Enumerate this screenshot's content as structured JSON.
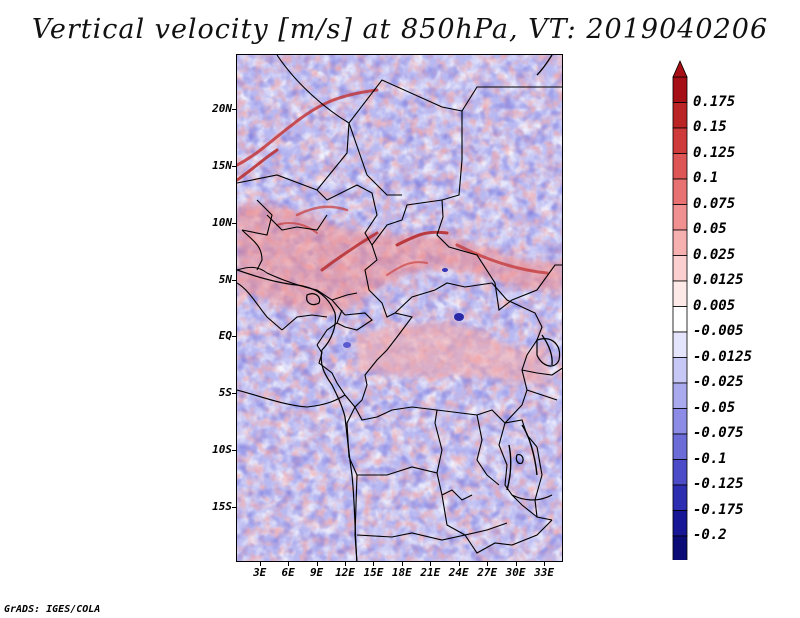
{
  "title": "Vertical velocity [m/s] at 850hPa, VT: 2019040206",
  "footer": "GrADS: IGES/COLA",
  "map": {
    "lat_labels": [
      "20N",
      "15N",
      "10N",
      "5N",
      "EQ",
      "5S",
      "10S",
      "15S"
    ],
    "lat_values": [
      20,
      15,
      10,
      5,
      0,
      -5,
      -10,
      -15
    ],
    "lon_labels": [
      "3E",
      "6E",
      "9E",
      "12E",
      "15E",
      "18E",
      "21E",
      "24E",
      "27E",
      "30E",
      "33E"
    ],
    "lon_values": [
      3,
      6,
      9,
      12,
      15,
      18,
      21,
      24,
      27,
      30,
      33
    ],
    "lon_range": [
      0.5,
      35
    ],
    "lat_range": [
      -19.8,
      24.8
    ]
  },
  "colorbar": {
    "labels": [
      "0.175",
      "0.15",
      "0.125",
      "0.1",
      "0.075",
      "0.05",
      "0.025",
      "0.0125",
      "0.005",
      "-0.005",
      "-0.0125",
      "-0.025",
      "-0.05",
      "-0.075",
      "-0.1",
      "-0.125",
      "-0.175",
      "-0.2"
    ],
    "colors": [
      "#a50f15",
      "#bb2424",
      "#cf3a3a",
      "#de5555",
      "#e87272",
      "#f09090",
      "#f6b0b0",
      "#fbcfcf",
      "#fee9e9",
      "#ffffff",
      "#e4e4fc",
      "#c8c8f6",
      "#a9a9ee",
      "#8c8ce6",
      "#6c6cd8",
      "#4c4cc8",
      "#2d2db2",
      "#161696",
      "#0b0b78"
    ]
  }
}
